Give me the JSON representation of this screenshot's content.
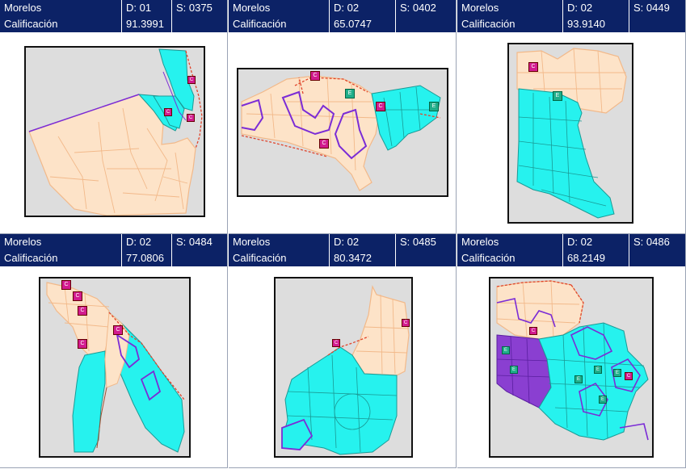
{
  "panels": [
    {
      "state": "Morelos",
      "district": "D: 01",
      "section": "S: 0375",
      "score_label": "Calificación",
      "score": "91.3991"
    },
    {
      "state": "Morelos",
      "district": "D: 02",
      "section": "S: 0402",
      "score_label": "Calificación",
      "score": "65.0747"
    },
    {
      "state": "Morelos",
      "district": "D: 02",
      "section": "S: 0449",
      "score_label": "Calificación",
      "score": "93.9140"
    },
    {
      "state": "Morelos",
      "district": "D: 02",
      "section": "S: 0484",
      "score_label": "Calificación",
      "score": "77.0806"
    },
    {
      "state": "Morelos",
      "district": "D: 02",
      "section": "S: 0485",
      "score_label": "Calificación",
      "score": "80.3472"
    },
    {
      "state": "Morelos",
      "district": "D: 02",
      "section": "S: 0486",
      "score_label": "Calificación",
      "score": "68.2149"
    }
  ],
  "marker_letters": {
    "c": "C",
    "e": "E"
  },
  "colors": {
    "header_bg": "#0c2266",
    "peach": "#fde3c8",
    "peach_line": "#f2b98a",
    "cyan": "#26f2ee",
    "cyan_line": "#1a9a95",
    "purple": "#8a3fd1",
    "purple_line": "#7b2cd6",
    "red_dashed": "#e0442b",
    "marker_c": "#d21b8f",
    "marker_e": "#1fae8a",
    "map_bg": "#dddddd"
  }
}
